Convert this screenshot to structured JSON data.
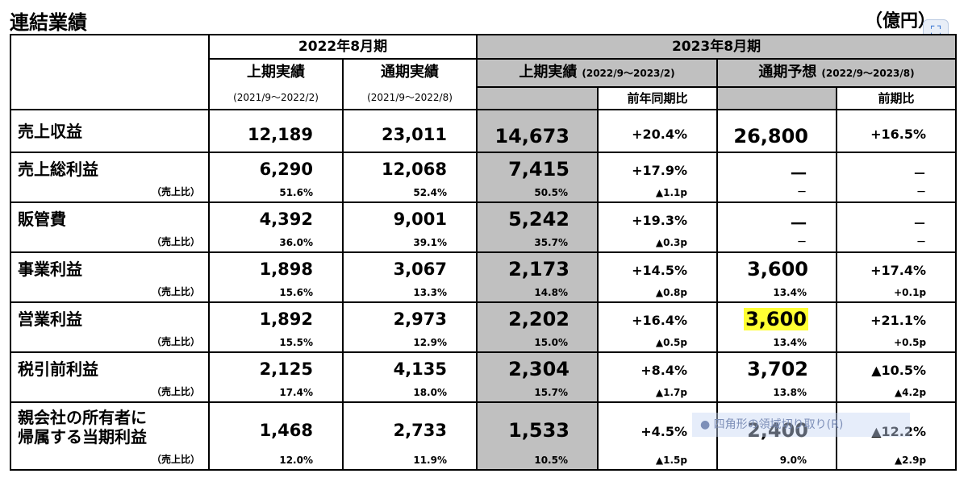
{
  "title": "連結業績",
  "unit": "（億円）",
  "header": {
    "fy2022": "2022年8月期",
    "fy2023": "2023年8月期",
    "h1_actual": "上期実績",
    "full_actual": "通期実績",
    "h1_actual_2023": "上期実績",
    "h1_actual_2023_period": "(2022/9～2023/2)",
    "full_forecast": "通期予想",
    "full_forecast_period": "(2022/9～2023/8)",
    "h1_period_2022": "(2021/9～2022/2)",
    "full_period_2022": "(2021/9～2022/8)",
    "yoy": "前年同期比",
    "vs_prev": "前期比"
  },
  "rows": [
    {
      "label": "売上収益",
      "sub": "",
      "c1": "12,189",
      "c1s": "",
      "c2": "23,011",
      "c2s": "",
      "c3": "14,673",
      "c3s": "",
      "c4": "+20.4%",
      "c4s": "",
      "c5": "26,800",
      "c5s": "",
      "c6": "+16.5%",
      "c6s": ""
    },
    {
      "label": "売上総利益",
      "sub": "（売上比）",
      "c1": "6,290",
      "c1s": "51.6%",
      "c2": "12,068",
      "c2s": "52.4%",
      "c3": "7,415",
      "c3s": "50.5%",
      "c4": "+17.9%",
      "c4s": "▲1.1p",
      "c5": "－",
      "c5s": "－",
      "c6": "－",
      "c6s": "－"
    },
    {
      "label": "販管費",
      "sub": "（売上比）",
      "c1": "4,392",
      "c1s": "36.0%",
      "c2": "9,001",
      "c2s": "39.1%",
      "c3": "5,242",
      "c3s": "35.7%",
      "c4": "+19.3%",
      "c4s": "▲0.3p",
      "c5": "－",
      "c5s": "－",
      "c6": "－",
      "c6s": "－"
    },
    {
      "label": "事業利益",
      "sub": "（売上比）",
      "c1": "1,898",
      "c1s": "15.6%",
      "c2": "3,067",
      "c2s": "13.3%",
      "c3": "2,173",
      "c3s": "14.8%",
      "c4": "+14.5%",
      "c4s": "▲0.8p",
      "c5": "3,600",
      "c5s": "13.4%",
      "c6": "+17.4%",
      "c6s": "+0.1p"
    },
    {
      "label": "営業利益",
      "sub": "（売上比）",
      "c1": "1,892",
      "c1s": "15.5%",
      "c2": "2,973",
      "c2s": "12.9%",
      "c3": "2,202",
      "c3s": "15.0%",
      "c4": "+16.4%",
      "c4s": "▲0.5p",
      "c5": "3,600",
      "c5s": "13.4%",
      "c6": "+21.1%",
      "c6s": "+0.5p"
    },
    {
      "label": "税引前利益",
      "sub": "（売上比）",
      "c1": "2,125",
      "c1s": "17.4%",
      "c2": "4,135",
      "c2s": "18.0%",
      "c3": "2,304",
      "c3s": "15.7%",
      "c4": "+8.4%",
      "c4s": "▲1.7p",
      "c5": "3,702",
      "c5s": "13.8%",
      "c6": "▲10.5%",
      "c6s": "▲4.2p"
    },
    {
      "label": "親会社の所有者に",
      "label2": "帰属する当期利益",
      "sub": "（売上比）",
      "c1": "1,468",
      "c1s": "12.0%",
      "c2": "2,733",
      "c2s": "11.9%",
      "c3": "1,533",
      "c3s": "10.5%",
      "c4": "+4.5%",
      "c4s": "▲1.5p",
      "c5": "2,400",
      "c5s": "9.0%",
      "c6": "▲12.2%",
      "c6s": "▲2.9p"
    }
  ],
  "overlay_text": "四角形の領域切り取り(R)",
  "accent_color": "#c0c0c0",
  "highlight_color": "#ffff33"
}
